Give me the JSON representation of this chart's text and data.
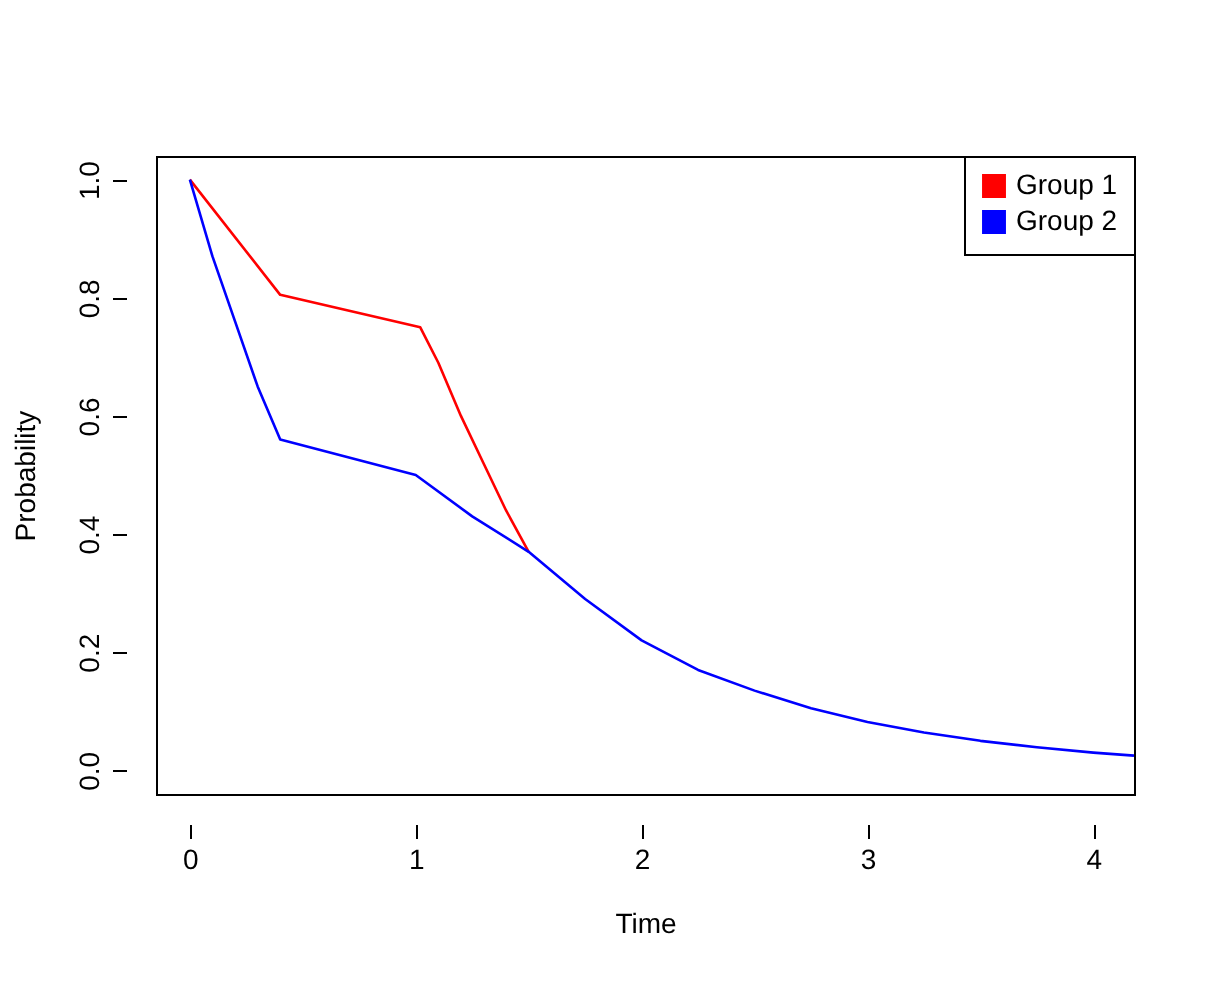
{
  "chart_data": {
    "type": "line",
    "xlabel": "Time",
    "ylabel": "Probability",
    "xlim": [
      -0.15,
      4.18
    ],
    "ylim": [
      -0.04,
      1.04
    ],
    "xticks": [
      0,
      1,
      2,
      3,
      4
    ],
    "yticks": [
      {
        "value": 0,
        "label": "0.0"
      },
      0.2,
      0.4,
      0.6,
      0.8,
      {
        "value": 1,
        "label": "1.0"
      }
    ],
    "grid": false,
    "legend": "top right",
    "marker": "none",
    "line_style": "solid",
    "series": [
      {
        "name": "Group 1",
        "color": "#ff0000",
        "x": [
          0,
          0.4,
          1.02,
          1.1,
          1.2,
          1.3,
          1.4,
          1.5
        ],
        "values": [
          1,
          0.805,
          0.75,
          0.69,
          0.6,
          0.52,
          0.44,
          0.37
        ]
      },
      {
        "name": "Group 2",
        "color": "#0000ff",
        "x": [
          0,
          0.1,
          0.2,
          0.3,
          0.4,
          1.0,
          1.25,
          1.5,
          1.75,
          2,
          2.25,
          2.5,
          2.75,
          3,
          3.25,
          3.5,
          3.75,
          4,
          4.18
        ],
        "values": [
          1,
          0.87,
          0.76,
          0.65,
          0.56,
          0.5,
          0.43,
          0.37,
          0.29,
          0.22,
          0.17,
          0.135,
          0.105,
          0.082,
          0.064,
          0.05,
          0.039,
          0.03,
          0.025
        ]
      }
    ]
  }
}
